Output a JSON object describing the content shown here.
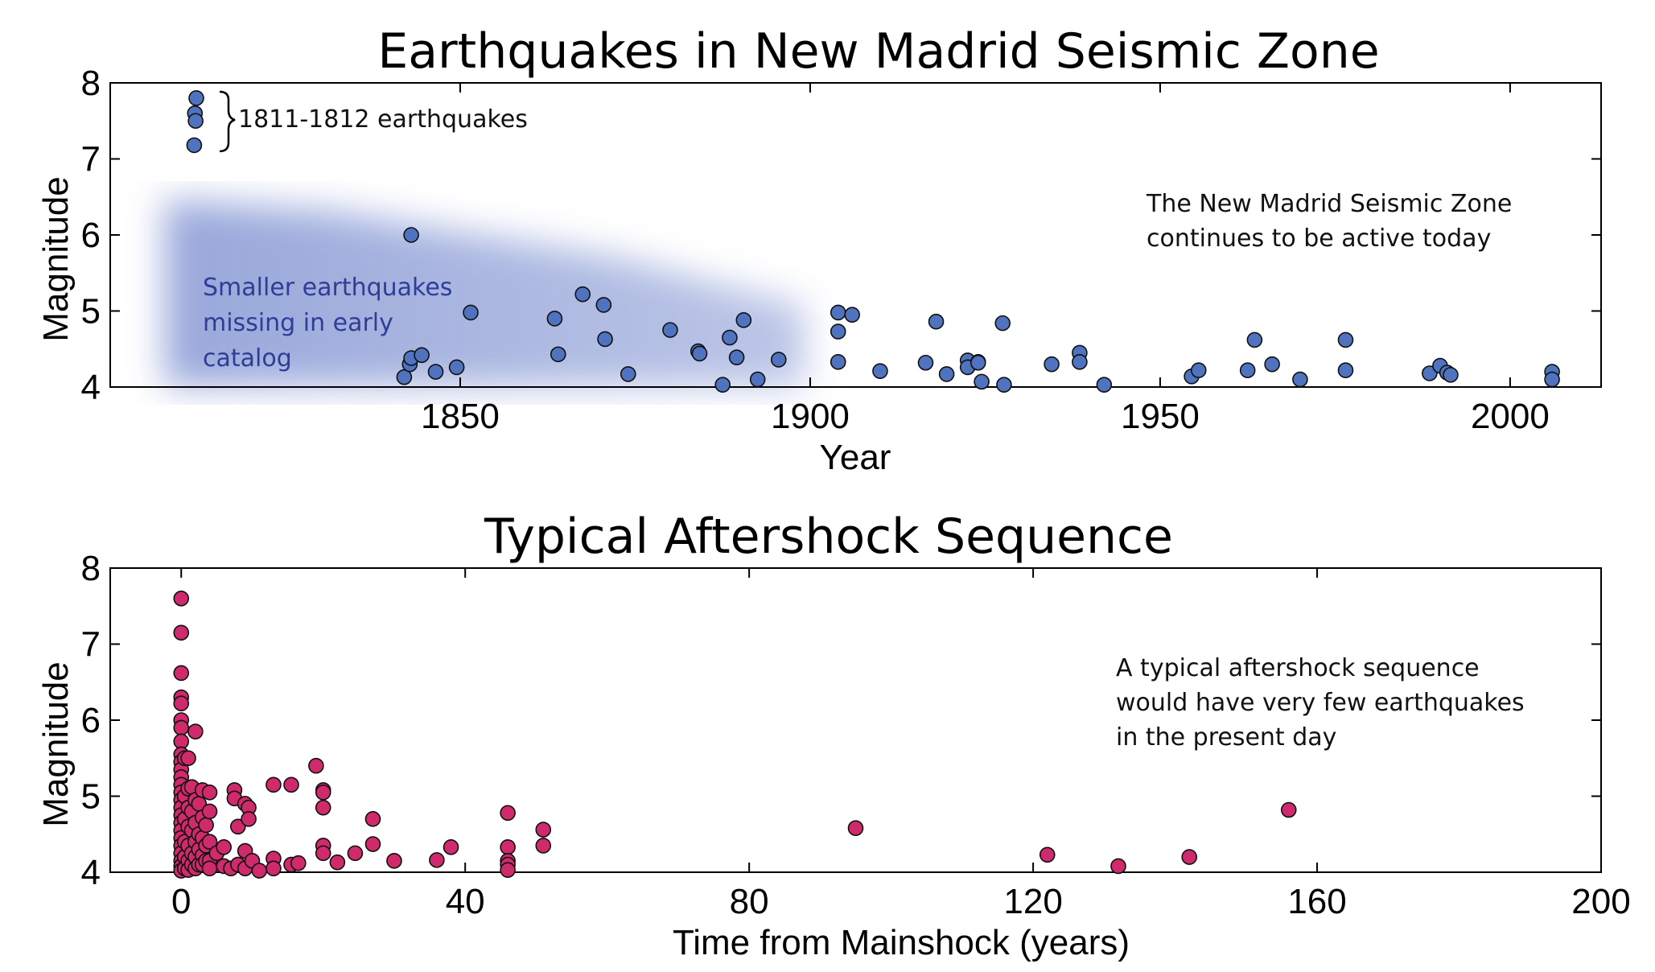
{
  "chart_data": [
    {
      "type": "scatter",
      "title": "Earthquakes in New Madrid Seismic Zone",
      "xlabel": "Year",
      "ylabel": "Magnitude",
      "xlim": [
        1800,
        2013
      ],
      "ylim": [
        4,
        8
      ],
      "xticks": [
        "1850",
        "1900",
        "1950",
        "2000"
      ],
      "yticks": [
        "4",
        "5",
        "6",
        "7",
        "8"
      ],
      "grid": false,
      "marker_color": "#4f73bf",
      "annotations": {
        "bracket_label": "1811-1812 earthquakes",
        "right_note": [
          "The New Madrid Seismic Zone",
          "continues to be active today"
        ],
        "shaded_note": [
          "Smaller earthquakes",
          "missing in early",
          "catalog"
        ],
        "shaded_note_color": "#2e3d96"
      },
      "points": [
        [
          1812.3,
          7.8
        ],
        [
          1812.1,
          7.6
        ],
        [
          1812.2,
          7.5
        ],
        [
          1812.0,
          7.18
        ],
        [
          1843.0,
          6.0
        ],
        [
          1842.0,
          4.13
        ],
        [
          1842.8,
          4.3
        ],
        [
          1843.0,
          4.38
        ],
        [
          1844.5,
          4.42
        ],
        [
          1846.5,
          4.2
        ],
        [
          1849.5,
          4.26
        ],
        [
          1851.5,
          4.98
        ],
        [
          1863.5,
          4.9
        ],
        [
          1864.0,
          4.43
        ],
        [
          1867.5,
          5.22
        ],
        [
          1870.5,
          5.08
        ],
        [
          1870.7,
          4.63
        ],
        [
          1874.0,
          4.17
        ],
        [
          1880.0,
          4.75
        ],
        [
          1884.0,
          4.47
        ],
        [
          1884.2,
          4.44
        ],
        [
          1887.5,
          4.03
        ],
        [
          1888.5,
          4.65
        ],
        [
          1889.5,
          4.39
        ],
        [
          1890.5,
          4.88
        ],
        [
          1892.5,
          4.1
        ],
        [
          1895.5,
          4.36
        ],
        [
          1904.0,
          4.98
        ],
        [
          1904.0,
          4.73
        ],
        [
          1904.0,
          4.33
        ],
        [
          1906.0,
          4.95
        ],
        [
          1910.0,
          4.21
        ],
        [
          1916.5,
          4.32
        ],
        [
          1918.0,
          4.86
        ],
        [
          1919.5,
          4.17
        ],
        [
          1922.5,
          4.35
        ],
        [
          1922.5,
          4.26
        ],
        [
          1924.0,
          4.33
        ],
        [
          1924.0,
          4.32
        ],
        [
          1924.5,
          4.07
        ],
        [
          1927.5,
          4.84
        ],
        [
          1927.7,
          4.03
        ],
        [
          1934.5,
          4.3
        ],
        [
          1938.5,
          4.45
        ],
        [
          1938.5,
          4.33
        ],
        [
          1942.0,
          4.03
        ],
        [
          1954.5,
          4.14
        ],
        [
          1955.5,
          4.22
        ],
        [
          1962.5,
          4.22
        ],
        [
          1963.5,
          4.62
        ],
        [
          1966.0,
          4.3
        ],
        [
          1970.0,
          4.1
        ],
        [
          1976.5,
          4.62
        ],
        [
          1976.5,
          4.22
        ],
        [
          1988.5,
          4.18
        ],
        [
          1990.0,
          4.28
        ],
        [
          1991.0,
          4.19
        ],
        [
          1991.5,
          4.16
        ],
        [
          2006.0,
          4.2
        ],
        [
          2006.0,
          4.1
        ]
      ]
    },
    {
      "type": "scatter",
      "title": "Typical Aftershock Sequence",
      "xlabel": "Time from Mainshock (years)",
      "ylabel": "Magnitude",
      "xlim": [
        -10,
        200
      ],
      "ylim": [
        4,
        8
      ],
      "xticks": [
        "0",
        "40",
        "80",
        "120",
        "160",
        "200"
      ],
      "yticks": [
        "4",
        "5",
        "6",
        "7",
        "8"
      ],
      "grid": false,
      "marker_color": "#cf2a6b",
      "annotations": {
        "right_note": [
          "A typical aftershock sequence",
          "would have very few earthquakes",
          "in the present day"
        ]
      },
      "points": [
        [
          0,
          7.6
        ],
        [
          0,
          7.15
        ],
        [
          0,
          6.62
        ],
        [
          0,
          6.3
        ],
        [
          0,
          6.22
        ],
        [
          0,
          6.0
        ],
        [
          0,
          5.9
        ],
        [
          0,
          5.72
        ],
        [
          0,
          5.55
        ],
        [
          0,
          5.45
        ],
        [
          0,
          5.35
        ],
        [
          0,
          5.25
        ],
        [
          0,
          5.15
        ],
        [
          0,
          5.05
        ],
        [
          0,
          4.95
        ],
        [
          0,
          4.85
        ],
        [
          0,
          4.75
        ],
        [
          0,
          4.65
        ],
        [
          0,
          4.55
        ],
        [
          0,
          4.45
        ],
        [
          0,
          4.35
        ],
        [
          0,
          4.25
        ],
        [
          0,
          4.15
        ],
        [
          0,
          4.08
        ],
        [
          0,
          4.02
        ],
        [
          0.5,
          5.5
        ],
        [
          0.5,
          5.0
        ],
        [
          0.5,
          4.7
        ],
        [
          0.5,
          4.4
        ],
        [
          0.5,
          4.2
        ],
        [
          0.5,
          4.05
        ],
        [
          1,
          5.5
        ],
        [
          1,
          5.1
        ],
        [
          1,
          4.85
        ],
        [
          1,
          4.6
        ],
        [
          1,
          4.35
        ],
        [
          1,
          4.15
        ],
        [
          1,
          4.03
        ],
        [
          1.5,
          5.12
        ],
        [
          1.5,
          4.8
        ],
        [
          1.5,
          4.55
        ],
        [
          1.5,
          4.25
        ],
        [
          1.5,
          4.1
        ],
        [
          2,
          5.85
        ],
        [
          2,
          4.95
        ],
        [
          2,
          4.65
        ],
        [
          2,
          4.4
        ],
        [
          2,
          4.2
        ],
        [
          2,
          4.05
        ],
        [
          2.5,
          4.9
        ],
        [
          2.5,
          4.5
        ],
        [
          2.5,
          4.3
        ],
        [
          2.5,
          4.1
        ],
        [
          3,
          5.08
        ],
        [
          3,
          4.72
        ],
        [
          3,
          4.45
        ],
        [
          3,
          4.22
        ],
        [
          3,
          4.1
        ],
        [
          3.5,
          4.62
        ],
        [
          3.5,
          4.35
        ],
        [
          3.5,
          4.15
        ],
        [
          4,
          5.05
        ],
        [
          4,
          4.8
        ],
        [
          4,
          4.4
        ],
        [
          4,
          4.15
        ],
        [
          4,
          4.05
        ],
        [
          5,
          4.25
        ],
        [
          6,
          4.33
        ],
        [
          6,
          4.08
        ],
        [
          7,
          4.05
        ],
        [
          7.5,
          5.08
        ],
        [
          7.5,
          4.97
        ],
        [
          8,
          4.6
        ],
        [
          8,
          4.1
        ],
        [
          9,
          4.9
        ],
        [
          9,
          4.28
        ],
        [
          9,
          4.05
        ],
        [
          9.5,
          4.85
        ],
        [
          9.5,
          4.7
        ],
        [
          10,
          4.15
        ],
        [
          11,
          4.02
        ],
        [
          13,
          5.15
        ],
        [
          13,
          4.18
        ],
        [
          13,
          4.05
        ],
        [
          15.5,
          5.15
        ],
        [
          15.5,
          4.1
        ],
        [
          16.5,
          4.12
        ],
        [
          19,
          5.4
        ],
        [
          20,
          5.08
        ],
        [
          20,
          5.05
        ],
        [
          20,
          4.85
        ],
        [
          20,
          4.35
        ],
        [
          20,
          4.25
        ],
        [
          22,
          4.13
        ],
        [
          24.5,
          4.25
        ],
        [
          27,
          4.7
        ],
        [
          27,
          4.37
        ],
        [
          30,
          4.15
        ],
        [
          36,
          4.16
        ],
        [
          38,
          4.33
        ],
        [
          46,
          4.78
        ],
        [
          46,
          4.33
        ],
        [
          46,
          4.15
        ],
        [
          46,
          4.1
        ],
        [
          46,
          4.03
        ],
        [
          51,
          4.56
        ],
        [
          51,
          4.35
        ],
        [
          95,
          4.58
        ],
        [
          122,
          4.23
        ],
        [
          132,
          4.08
        ],
        [
          142,
          4.2
        ],
        [
          156,
          4.82
        ]
      ]
    }
  ]
}
